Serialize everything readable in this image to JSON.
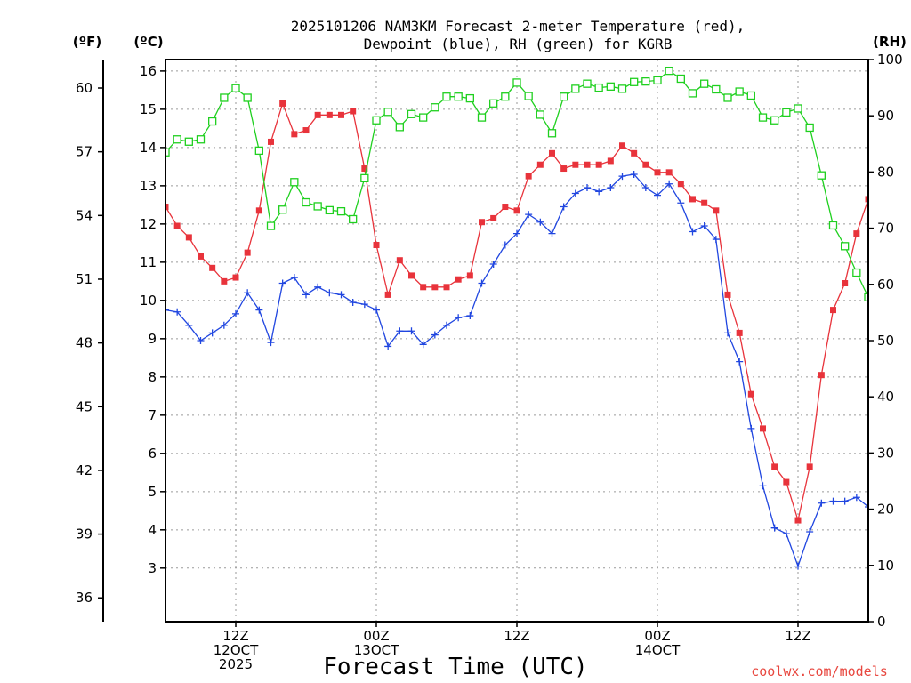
{
  "chart_data": {
    "type": "line",
    "title_lines": [
      "2025101206 NAM3KM Forecast 2-meter Temperature (red),",
      "Dewpoint (blue), RH (green) for KGRB"
    ],
    "xlabel": "Forecast Time (UTC)",
    "credit": "coolwx.com/models",
    "units": {
      "fahrenheit": "(ºF)",
      "celsius": "(ºC)",
      "rh": "(RH)"
    },
    "x_start": 0,
    "x_end": 60,
    "x_unit": "hours from 2025-10-12 06Z",
    "x_ticks": [
      {
        "x": 6,
        "lines": [
          "12Z",
          "12OCT",
          "2025"
        ]
      },
      {
        "x": 18,
        "lines": [
          "00Z",
          "13OCT"
        ]
      },
      {
        "x": 30,
        "lines": [
          "12Z"
        ]
      },
      {
        "x": 42,
        "lines": [
          "00Z",
          "14OCT"
        ]
      },
      {
        "x": 54,
        "lines": [
          "12Z"
        ]
      }
    ],
    "y_celsius": {
      "ylim": [
        1.6,
        16.3
      ],
      "ticks": [
        3,
        4,
        5,
        6,
        7,
        8,
        9,
        10,
        11,
        12,
        13,
        14,
        15,
        16
      ]
    },
    "y_fahrenheit": {
      "ticks": [
        36,
        39,
        42,
        45,
        48,
        51,
        54,
        57,
        60
      ]
    },
    "y_rh": {
      "ylim": [
        0,
        100
      ],
      "ticks": [
        0,
        10,
        20,
        30,
        40,
        50,
        60,
        70,
        80,
        90,
        100
      ]
    },
    "series": [
      {
        "name": "2-meter Temperature",
        "axis": "celsius",
        "color": "#e8333b",
        "marker": "filled-square",
        "values": [
          12.45,
          11.95,
          11.65,
          11.15,
          10.85,
          10.5,
          10.6,
          11.25,
          12.35,
          14.15,
          15.15,
          14.35,
          14.45,
          14.85,
          14.85,
          14.85,
          14.95,
          13.45,
          11.45,
          10.15,
          11.05,
          10.65,
          10.35,
          10.35,
          10.35,
          10.55,
          10.65,
          12.05,
          12.15,
          12.45,
          12.35,
          13.25,
          13.55,
          13.85,
          13.45,
          13.55,
          13.55,
          13.55,
          13.65,
          14.05,
          13.85,
          13.55,
          13.35,
          13.35,
          13.05,
          12.65,
          12.55,
          12.35,
          10.15,
          9.15,
          7.55,
          6.65,
          5.65,
          5.25,
          4.25,
          5.65,
          8.05,
          9.75,
          10.45,
          11.75,
          12.65
        ]
      },
      {
        "name": "Dewpoint",
        "axis": "celsius",
        "color": "#2046e0",
        "marker": "plus",
        "values": [
          9.75,
          9.7,
          9.35,
          8.95,
          9.15,
          9.35,
          9.65,
          10.2,
          9.75,
          8.9,
          10.45,
          10.6,
          10.15,
          10.35,
          10.2,
          10.15,
          9.95,
          9.9,
          9.75,
          8.8,
          9.2,
          9.2,
          8.85,
          9.1,
          9.35,
          9.55,
          9.6,
          10.45,
          10.95,
          11.45,
          11.75,
          12.25,
          12.05,
          11.75,
          12.45,
          12.8,
          12.95,
          12.85,
          12.95,
          13.25,
          13.3,
          12.95,
          12.75,
          13.05,
          12.55,
          11.8,
          11.95,
          11.6,
          9.15,
          8.4,
          6.65,
          5.15,
          4.05,
          3.9,
          3.05,
          3.95,
          4.7,
          4.75,
          4.75,
          4.85,
          4.6
        ]
      },
      {
        "name": "RH",
        "axis": "rh",
        "color": "#1fd01f",
        "marker": "open-square",
        "values": [
          83.5,
          85.8,
          85.4,
          85.8,
          89.0,
          93.2,
          94.9,
          93.2,
          83.8,
          70.4,
          73.3,
          78.2,
          74.6,
          73.9,
          73.2,
          73.0,
          71.6,
          78.9,
          89.2,
          90.7,
          88.0,
          90.3,
          89.7,
          91.5,
          93.4,
          93.4,
          93.1,
          89.7,
          92.2,
          93.4,
          95.9,
          93.5,
          90.2,
          86.9,
          93.4,
          94.8,
          95.7,
          95.0,
          95.2,
          94.8,
          96.0,
          96.1,
          96.3,
          98.0,
          96.6,
          94.0,
          95.7,
          94.7,
          93.2,
          94.3,
          93.6,
          89.7,
          89.2,
          90.6,
          91.3,
          87.9,
          79.4,
          70.5,
          66.8,
          62.1,
          57.7
        ]
      }
    ]
  }
}
